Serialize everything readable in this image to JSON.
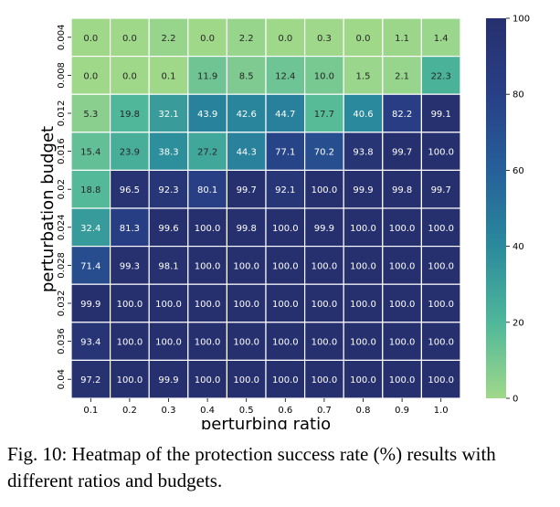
{
  "chart_data": {
    "type": "heatmap",
    "xlabel": "perturbing ratio",
    "ylabel": "perturbation budget",
    "x": [
      "0.1",
      "0.2",
      "0.3",
      "0.4",
      "0.5",
      "0.6",
      "0.7",
      "0.8",
      "0.9",
      "1.0"
    ],
    "y": [
      "0.004",
      "0.008",
      "0.012",
      "0.016",
      "0.02",
      "0.024",
      "0.028",
      "0.032",
      "0.036",
      "0.04"
    ],
    "values": [
      [
        0.0,
        0.0,
        2.2,
        0.0,
        2.2,
        0.0,
        0.3,
        0.0,
        1.1,
        1.4
      ],
      [
        0.0,
        0.0,
        0.1,
        11.9,
        8.5,
        12.4,
        10.0,
        1.5,
        2.1,
        22.3
      ],
      [
        5.3,
        19.8,
        32.1,
        43.9,
        42.6,
        44.7,
        17.7,
        40.6,
        82.2,
        99.1
      ],
      [
        15.4,
        23.9,
        38.3,
        27.2,
        44.3,
        77.1,
        70.2,
        93.8,
        99.7,
        100.0
      ],
      [
        18.8,
        96.5,
        92.3,
        80.1,
        99.7,
        92.1,
        100.0,
        99.9,
        99.8,
        99.7
      ],
      [
        32.4,
        81.3,
        99.6,
        100.0,
        99.8,
        100.0,
        99.9,
        100.0,
        100.0,
        100.0
      ],
      [
        71.4,
        99.3,
        98.1,
        100.0,
        100.0,
        100.0,
        100.0,
        100.0,
        100.0,
        100.0
      ],
      [
        99.9,
        100.0,
        100.0,
        100.0,
        100.0,
        100.0,
        100.0,
        100.0,
        100.0,
        100.0
      ],
      [
        93.4,
        100.0,
        100.0,
        100.0,
        100.0,
        100.0,
        100.0,
        100.0,
        100.0,
        100.0
      ],
      [
        97.2,
        100.0,
        99.9,
        100.0,
        100.0,
        100.0,
        100.0,
        100.0,
        100.0,
        100.0
      ]
    ],
    "colorbar": {
      "min": 0,
      "max": 100,
      "ticks": [
        "0",
        "20",
        "40",
        "60",
        "80",
        "100"
      ]
    },
    "colormap": [
      "#a0d88a",
      "#4fb79a",
      "#2a8a9c",
      "#26609a",
      "#283f86",
      "#27306e"
    ]
  },
  "caption": "Fig. 10: Heatmap of the protection success rate (%) results with different ratios and budgets."
}
